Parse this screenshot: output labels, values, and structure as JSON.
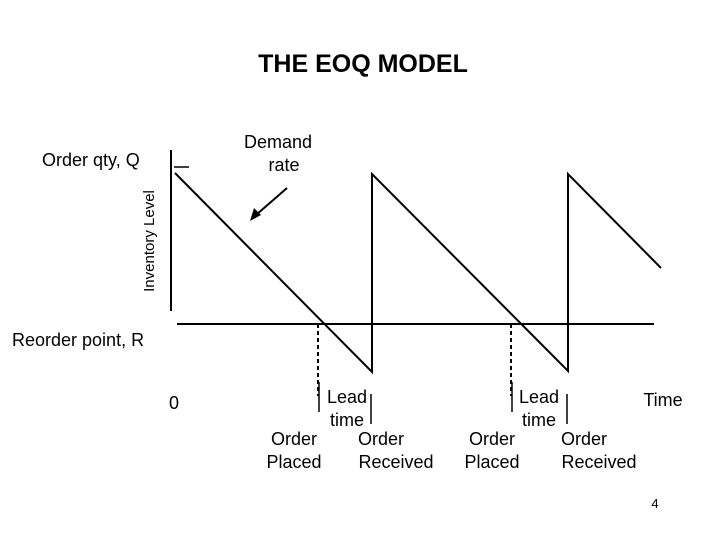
{
  "title": "THE EOQ MODEL",
  "labels": {
    "order_qty": "Order qty, Q",
    "y_axis": "Inventory Level",
    "demand_rate_line1": "Demand",
    "demand_rate_line2": "rate",
    "reorder_point": "Reorder point, R",
    "origin": "0",
    "time": "Time",
    "lead_time_1_line1": "Lead",
    "lead_time_1_line2": "time",
    "lead_time_2_line1": "Lead",
    "lead_time_2_line2": "time",
    "order_placed_1_line1": "Order",
    "order_placed_1_line2": "Placed",
    "order_received_1_line1": "Order",
    "order_received_1_line2": "Received",
    "order_placed_2_line1": "Order",
    "order_placed_2_line2": "Placed",
    "order_received_2_line1": "Order",
    "order_received_2_line2": "Received"
  },
  "page_number": "4",
  "colors": {
    "ink": "#000000",
    "background": "#ffffff"
  }
}
